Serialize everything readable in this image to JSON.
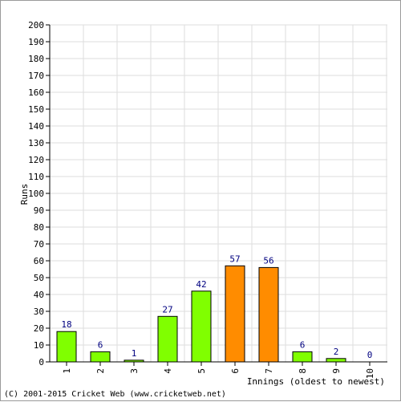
{
  "chart_data": {
    "type": "bar",
    "categories": [
      "1",
      "2",
      "3",
      "4",
      "5",
      "6",
      "7",
      "8",
      "9",
      "10"
    ],
    "values": [
      18,
      6,
      1,
      27,
      42,
      57,
      56,
      6,
      2,
      0
    ],
    "data_labels": [
      "18",
      "6",
      "1",
      "27",
      "42",
      "57",
      "56",
      "6",
      "2",
      "0"
    ],
    "bar_colors": [
      "#80ff00",
      "#80ff00",
      "#80ff00",
      "#80ff00",
      "#80ff00",
      "#ff8c00",
      "#ff8c00",
      "#80ff00",
      "#80ff00",
      "#80ff00"
    ],
    "ylabel": "Runs",
    "xlabel": "Innings (oldest to newest)",
    "ylim": [
      0,
      200
    ],
    "ytick_step": 10,
    "grid": true,
    "colors": {
      "bar_default": "#80ff00",
      "bar_highlight": "#ff8c00",
      "bar_outline": "#000000",
      "data_label": "#000080",
      "grid": "#dddddd",
      "axis": "#000000"
    }
  },
  "footer": {
    "copyright": "(C) 2001-2015 Cricket Web (www.cricketweb.net)"
  }
}
